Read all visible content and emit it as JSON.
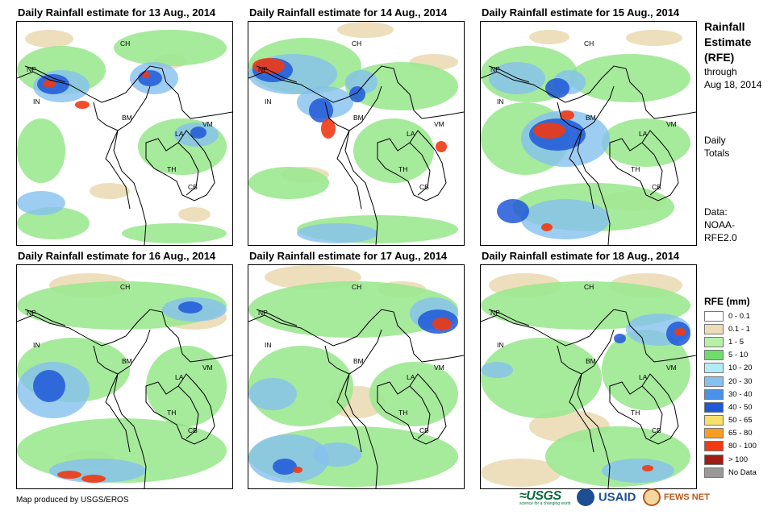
{
  "panels": [
    {
      "title": "Daily Rainfall estimate for 13 Aug., 2014"
    },
    {
      "title": "Daily Rainfall estimate for 14 Aug., 2014"
    },
    {
      "title": "Daily Rainfall estimate for 15 Aug., 2014"
    },
    {
      "title": "Daily Rainfall estimate for 16 Aug., 2014"
    },
    {
      "title": "Daily Rainfall estimate for 17 Aug., 2014"
    },
    {
      "title": "Daily Rainfall estimate for 18 Aug., 2014"
    }
  ],
  "country_labels": [
    "CH",
    "NP",
    "IN",
    "BM",
    "LA",
    "VM",
    "TH",
    "CB"
  ],
  "side": {
    "title_lines": [
      "Rainfall",
      "Estimate",
      "(RFE)"
    ],
    "through": "through",
    "through_date": "Aug 18, 2014",
    "totals_lines": [
      "Daily",
      "Totals"
    ],
    "data_lines": [
      "Data:",
      "NOAA-",
      "RFE2.0"
    ]
  },
  "legend": {
    "title": "RFE (mm)",
    "items": [
      {
        "label": "0 - 0.1",
        "color": "#ffffff"
      },
      {
        "label": "0.1 - 1",
        "color": "#ecdcb8"
      },
      {
        "label": "1 - 5",
        "color": "#b8f0a8"
      },
      {
        "label": "5 - 10",
        "color": "#6fdc6c"
      },
      {
        "label": "10 - 20",
        "color": "#b2ecf7"
      },
      {
        "label": "20 - 30",
        "color": "#86c1ef"
      },
      {
        "label": "30 - 40",
        "color": "#4a92e8"
      },
      {
        "label": "40 - 50",
        "color": "#1f58d8"
      },
      {
        "label": "50 - 65",
        "color": "#f8e06c"
      },
      {
        "label": "65 - 80",
        "color": "#f79d22"
      },
      {
        "label": "80 - 100",
        "color": "#ef3a13"
      },
      {
        "label": "> 100",
        "color": "#a11d14"
      },
      {
        "label": "No Data",
        "color": "#999999"
      }
    ]
  },
  "footer": {
    "credit": "Map produced by USGS/EROS",
    "logos": {
      "usgs": "≈USGS",
      "usgs_tag": "science for a changing world",
      "usaid": "USAID",
      "fews": "FEWS NET"
    }
  },
  "rain_patterns": [
    {
      "tan": [
        [
          10,
          10,
          60,
          22
        ],
        [
          170,
          40,
          40,
          18
        ],
        [
          90,
          200,
          50,
          20
        ],
        [
          200,
          230,
          40,
          18
        ]
      ],
      "green": [
        [
          0,
          30,
          110,
          60
        ],
        [
          120,
          10,
          140,
          45
        ],
        [
          0,
          120,
          60,
          80
        ],
        [
          150,
          120,
          110,
          70
        ],
        [
          0,
          230,
          90,
          40
        ],
        [
          130,
          250,
          130,
          25
        ]
      ],
      "blue": [
        [
          20,
          60,
          70,
          40
        ],
        [
          140,
          50,
          60,
          40
        ],
        [
          195,
          125,
          55,
          30
        ],
        [
          0,
          210,
          60,
          30
        ]
      ],
      "dark": [
        [
          25,
          65,
          40,
          25
        ],
        [
          150,
          60,
          30,
          20
        ],
        [
          215,
          130,
          20,
          15
        ]
      ],
      "hot": [
        [
          32,
          72,
          16,
          10
        ],
        [
          72,
          98,
          18,
          10
        ],
        [
          155,
          62,
          10,
          8
        ]
      ]
    },
    {
      "tan": [
        [
          110,
          0,
          70,
          20
        ],
        [
          200,
          40,
          60,
          20
        ],
        [
          40,
          180,
          60,
          20
        ]
      ],
      "green": [
        [
          0,
          20,
          140,
          70
        ],
        [
          120,
          50,
          140,
          60
        ],
        [
          130,
          120,
          100,
          80
        ],
        [
          0,
          180,
          100,
          40
        ],
        [
          60,
          240,
          200,
          35
        ]
      ],
      "blue": [
        [
          0,
          40,
          110,
          50
        ],
        [
          60,
          80,
          70,
          40
        ],
        [
          120,
          60,
          40,
          30
        ],
        [
          60,
          250,
          100,
          25
        ]
      ],
      "dark": [
        [
          5,
          45,
          50,
          30
        ],
        [
          75,
          95,
          30,
          30
        ],
        [
          125,
          80,
          20,
          20
        ]
      ],
      "hot": [
        [
          5,
          45,
          40,
          20
        ],
        [
          90,
          120,
          18,
          25
        ],
        [
          232,
          148,
          14,
          14
        ]
      ]
    },
    {
      "tan": [
        [
          60,
          10,
          50,
          18
        ],
        [
          180,
          10,
          70,
          20
        ],
        [
          150,
          210,
          80,
          25
        ]
      ],
      "green": [
        [
          0,
          30,
          120,
          70
        ],
        [
          110,
          40,
          150,
          60
        ],
        [
          0,
          100,
          110,
          90
        ],
        [
          40,
          200,
          200,
          60
        ],
        [
          150,
          120,
          110,
          60
        ]
      ],
      "blue": [
        [
          10,
          50,
          70,
          40
        ],
        [
          50,
          110,
          110,
          70
        ],
        [
          90,
          60,
          40,
          30
        ],
        [
          50,
          220,
          110,
          50
        ]
      ],
      "dark": [
        [
          60,
          120,
          70,
          40
        ],
        [
          80,
          70,
          30,
          25
        ],
        [
          20,
          220,
          40,
          30
        ]
      ],
      "hot": [
        [
          65,
          125,
          40,
          20
        ],
        [
          98,
          110,
          18,
          12
        ],
        [
          75,
          250,
          14,
          10
        ]
      ]
    },
    {
      "tan": [
        [
          40,
          10,
          100,
          30
        ],
        [
          180,
          50,
          80,
          30
        ],
        [
          60,
          230,
          60,
          20
        ]
      ],
      "green": [
        [
          0,
          20,
          260,
          60
        ],
        [
          0,
          90,
          140,
          80
        ],
        [
          160,
          100,
          100,
          100
        ],
        [
          0,
          190,
          260,
          80
        ]
      ],
      "blue": [
        [
          0,
          120,
          90,
          70
        ],
        [
          180,
          40,
          80,
          30
        ],
        [
          40,
          240,
          120,
          30
        ]
      ],
      "dark": [
        [
          20,
          130,
          40,
          40
        ],
        [
          200,
          45,
          30,
          15
        ]
      ],
      "hot": [
        [
          50,
          255,
          30,
          10
        ],
        [
          80,
          260,
          30,
          10
        ]
      ]
    },
    {
      "tan": [
        [
          20,
          0,
          120,
          30
        ],
        [
          160,
          20,
          60,
          20
        ],
        [
          100,
          150,
          70,
          40
        ]
      ],
      "green": [
        [
          0,
          20,
          260,
          70
        ],
        [
          0,
          100,
          130,
          100
        ],
        [
          150,
          120,
          110,
          80
        ],
        [
          0,
          200,
          260,
          75
        ]
      ],
      "blue": [
        [
          200,
          40,
          60,
          40
        ],
        [
          0,
          140,
          60,
          40
        ],
        [
          0,
          210,
          100,
          60
        ],
        [
          80,
          220,
          60,
          30
        ]
      ],
      "dark": [
        [
          210,
          55,
          50,
          30
        ],
        [
          30,
          240,
          30,
          20
        ]
      ],
      "hot": [
        [
          228,
          65,
          24,
          16
        ],
        [
          55,
          250,
          12,
          8
        ]
      ]
    },
    {
      "tan": [
        [
          10,
          10,
          90,
          30
        ],
        [
          160,
          10,
          90,
          30
        ],
        [
          60,
          180,
          100,
          40
        ],
        [
          0,
          240,
          100,
          35
        ]
      ],
      "green": [
        [
          0,
          20,
          260,
          60
        ],
        [
          0,
          90,
          150,
          100
        ],
        [
          150,
          80,
          110,
          100
        ],
        [
          80,
          200,
          180,
          75
        ]
      ],
      "blue": [
        [
          180,
          60,
          80,
          40
        ],
        [
          0,
          120,
          40,
          20
        ],
        [
          150,
          240,
          90,
          30
        ]
      ],
      "dark": [
        [
          230,
          70,
          30,
          30
        ],
        [
          165,
          85,
          15,
          12
        ]
      ],
      "hot": [
        [
          240,
          78,
          14,
          10
        ],
        [
          200,
          248,
          14,
          8
        ]
      ]
    }
  ]
}
